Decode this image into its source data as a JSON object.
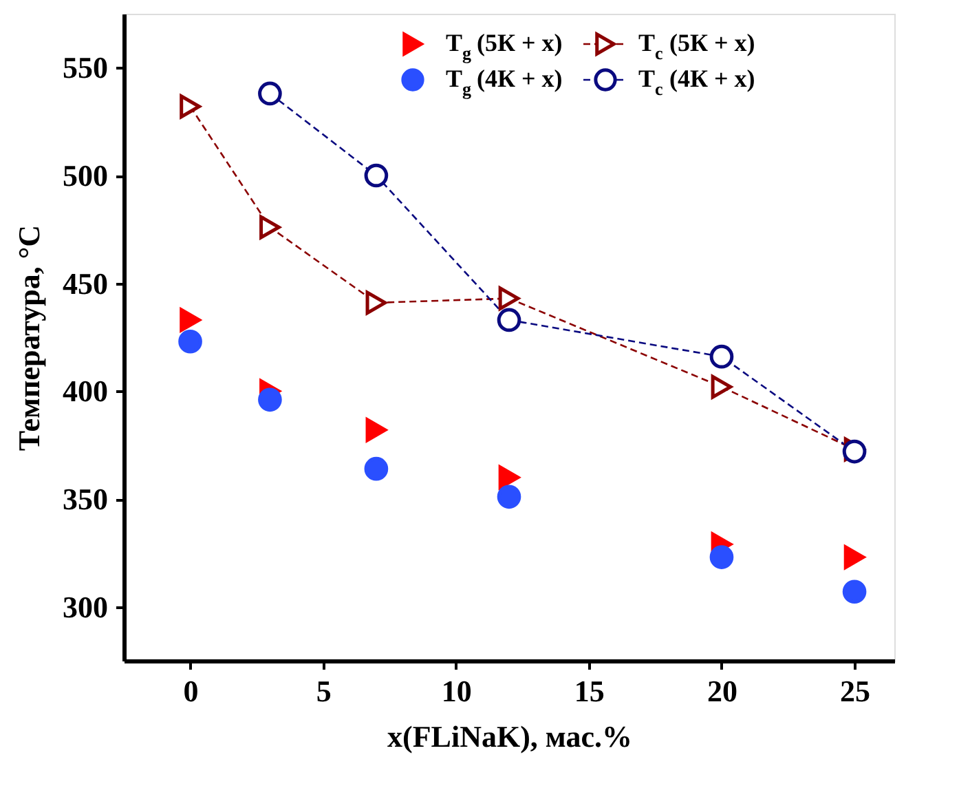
{
  "chart_data": {
    "type": "scatter",
    "xlabel": "x(FLiNaK), мас.%",
    "ylabel": "Температура, °C",
    "x": [
      0,
      3,
      7,
      12,
      20,
      25
    ],
    "series": [
      {
        "name": "T$_{g}$ (5К + x)",
        "marker": "triangle",
        "color": "#ff0000",
        "values": [
          433,
          400,
          382,
          360,
          329,
          323
        ]
      },
      {
        "name": "T$_{c}$ (5К + x)",
        "type": "line",
        "marker": "triangle",
        "line_style": "dashed",
        "color": "#8b0000",
        "values": [
          532,
          476,
          441,
          443,
          402,
          373
        ]
      },
      {
        "name": "T$_{g}$ (4К + x)",
        "marker": "circle",
        "color": "#2a4fff",
        "values": [
          423,
          396,
          364,
          351,
          323,
          307
        ]
      },
      {
        "name": "T$_{c}$ (4К + x)",
        "type": "line",
        "marker": "circle",
        "line_style": "dashed",
        "color": "#0a0a80",
        "x": [
          3,
          7,
          12,
          20,
          25
        ],
        "values": [
          538,
          500,
          433,
          416,
          372
        ]
      }
    ],
    "xlim": [
      -2.5,
      26.5
    ],
    "ylim": [
      275,
      575
    ],
    "xticks": [
      0,
      5,
      10,
      15,
      20,
      25
    ],
    "yticks": [
      300,
      350,
      400,
      450,
      500,
      550
    ],
    "legend": "top right",
    "grid": false
  }
}
